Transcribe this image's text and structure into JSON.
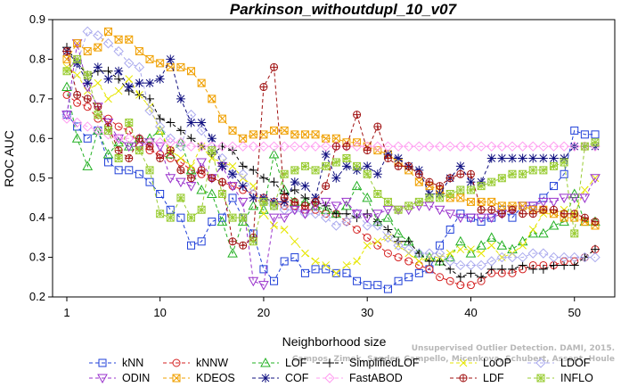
{
  "chart_data": {
    "type": "line",
    "title": "Parkinson_withoutdupl_10_v07",
    "xlabel": "Neighborhood size",
    "ylabel": "ROC AUC",
    "xlim": [
      1,
      52
    ],
    "ylim": [
      0.2,
      0.9
    ],
    "xticks": [
      1,
      10,
      20,
      30,
      40,
      50
    ],
    "yticks": [
      0.2,
      0.3,
      0.4,
      0.5,
      0.6,
      0.7,
      0.8,
      0.9
    ],
    "grid": false,
    "legend_position": "bottom",
    "credit_lines": [
      "Unsupervised Outlier Detection. DAMI, 2015.",
      "Campos, Zimek, Sander, Campello, Micenkova, Schubert, Assent, Houle"
    ],
    "x": [
      1,
      2,
      3,
      4,
      5,
      6,
      7,
      8,
      9,
      10,
      11,
      12,
      13,
      14,
      15,
      16,
      17,
      18,
      19,
      20,
      21,
      22,
      23,
      24,
      25,
      26,
      27,
      28,
      29,
      30,
      31,
      32,
      33,
      34,
      35,
      36,
      37,
      38,
      39,
      40,
      41,
      42,
      43,
      44,
      45,
      46,
      47,
      48,
      49,
      50,
      51,
      52
    ],
    "series": [
      {
        "name": "kNN",
        "color": "#1f3fd8",
        "marker": "square",
        "values": [
          0.66,
          0.63,
          0.6,
          0.62,
          0.54,
          0.52,
          0.52,
          0.51,
          0.49,
          0.46,
          0.42,
          0.4,
          0.33,
          0.34,
          0.39,
          0.4,
          0.45,
          0.4,
          0.36,
          0.27,
          0.24,
          0.29,
          0.3,
          0.26,
          0.27,
          0.27,
          0.26,
          0.26,
          0.24,
          0.23,
          0.23,
          0.22,
          0.24,
          0.25,
          0.26,
          0.27,
          0.33,
          0.37,
          0.41,
          0.4,
          0.39,
          0.4,
          0.42,
          0.4,
          0.43,
          0.43,
          0.45,
          0.48,
          0.51,
          0.62,
          0.61,
          0.61
        ]
      },
      {
        "name": "kNNW",
        "color": "#d42020",
        "marker": "circle",
        "values": [
          0.71,
          0.69,
          0.68,
          0.65,
          0.65,
          0.63,
          0.62,
          0.58,
          0.57,
          0.56,
          0.55,
          0.54,
          0.52,
          0.51,
          0.5,
          0.49,
          0.48,
          0.47,
          0.46,
          0.45,
          0.44,
          0.43,
          0.43,
          0.42,
          0.42,
          0.41,
          0.41,
          0.39,
          0.37,
          0.35,
          0.33,
          0.31,
          0.3,
          0.29,
          0.28,
          0.27,
          0.25,
          0.24,
          0.23,
          0.23,
          0.24,
          0.26,
          0.26,
          0.26,
          0.27,
          0.28,
          0.28,
          0.28,
          0.29,
          0.29,
          0.3,
          0.32
        ]
      },
      {
        "name": "LOF",
        "color": "#22b022",
        "marker": "triangle-up",
        "values": [
          0.73,
          0.6,
          0.53,
          0.62,
          0.56,
          0.59,
          0.58,
          0.6,
          0.6,
          0.62,
          0.56,
          0.59,
          0.52,
          0.47,
          0.46,
          0.39,
          0.31,
          0.39,
          0.43,
          0.42,
          0.56,
          0.47,
          0.44,
          0.44,
          0.43,
          0.42,
          0.41,
          0.43,
          0.48,
          0.45,
          0.39,
          0.4,
          0.36,
          0.34,
          0.31,
          0.3,
          0.29,
          0.3,
          0.34,
          0.31,
          0.33,
          0.35,
          0.33,
          0.32,
          0.34,
          0.36,
          0.36,
          0.38,
          0.39,
          0.46,
          0.39,
          0.39
        ]
      },
      {
        "name": "SimplifiedLOF",
        "color": "#000000",
        "marker": "plus",
        "values": [
          0.83,
          0.79,
          0.76,
          0.77,
          0.77,
          0.75,
          0.72,
          0.71,
          0.7,
          0.65,
          0.64,
          0.62,
          0.6,
          0.58,
          0.56,
          0.58,
          0.57,
          0.53,
          0.52,
          0.5,
          0.49,
          0.46,
          0.47,
          0.45,
          0.44,
          0.43,
          0.41,
          0.41,
          0.4,
          0.41,
          0.39,
          0.37,
          0.34,
          0.34,
          0.31,
          0.29,
          0.29,
          0.27,
          0.25,
          0.26,
          0.25,
          0.27,
          0.27,
          0.27,
          0.28,
          0.27,
          0.27,
          0.28,
          0.28,
          0.28,
          0.3,
          0.32
        ]
      },
      {
        "name": "LoOP",
        "color": "#e6e600",
        "marker": "cross",
        "values": [
          0.78,
          0.76,
          0.72,
          0.74,
          0.7,
          0.72,
          0.75,
          0.71,
          0.68,
          0.62,
          0.57,
          0.55,
          0.53,
          0.58,
          0.55,
          0.54,
          0.53,
          0.5,
          0.48,
          0.41,
          0.38,
          0.37,
          0.34,
          0.31,
          0.29,
          0.28,
          0.26,
          0.28,
          0.29,
          0.33,
          0.34,
          0.35,
          0.33,
          0.31,
          0.29,
          0.3,
          0.3,
          0.31,
          0.32,
          0.32,
          0.31,
          0.33,
          0.3,
          0.31,
          0.33,
          0.37,
          0.41,
          0.41,
          0.42,
          0.41,
          0.47,
          0.5
        ]
      },
      {
        "name": "LDOF",
        "color": "#aaaaee",
        "marker": "diamond",
        "values": [
          0.66,
          0.79,
          0.87,
          0.86,
          0.84,
          0.82,
          0.79,
          0.78,
          0.67,
          0.63,
          0.6,
          0.58,
          0.66,
          0.62,
          0.58,
          0.55,
          0.51,
          0.51,
          0.46,
          0.44,
          0.43,
          0.42,
          0.42,
          0.41,
          0.41,
          0.4,
          0.38,
          0.39,
          0.41,
          0.38,
          0.38,
          0.35,
          0.33,
          0.32,
          0.31,
          0.31,
          0.31,
          0.29,
          0.28,
          0.28,
          0.28,
          0.29,
          0.3,
          0.3,
          0.3,
          0.31,
          0.31,
          0.3,
          0.3,
          0.3,
          0.3,
          0.3
        ]
      },
      {
        "name": "ODIN",
        "color": "#9932cc",
        "marker": "triangle-down",
        "values": [
          0.66,
          0.84,
          0.73,
          0.68,
          0.64,
          0.6,
          0.58,
          0.58,
          0.59,
          0.58,
          0.5,
          0.49,
          0.48,
          0.54,
          0.5,
          0.53,
          0.48,
          0.44,
          0.24,
          0.23,
          0.4,
          0.4,
          0.42,
          0.41,
          0.43,
          0.44,
          0.43,
          0.44,
          0.41,
          0.4,
          0.41,
          0.42,
          0.42,
          0.42,
          0.43,
          0.43,
          0.42,
          0.41,
          0.4,
          0.4,
          0.4,
          0.4,
          0.41,
          0.42,
          0.43,
          0.43,
          0.44,
          0.44,
          0.45,
          0.45,
          0.45,
          0.5
        ]
      },
      {
        "name": "KDEOS",
        "color": "#f0a000",
        "marker": "square-cross",
        "values": [
          0.8,
          0.84,
          0.82,
          0.83,
          0.87,
          0.85,
          0.85,
          0.82,
          0.8,
          0.79,
          0.78,
          0.78,
          0.77,
          0.74,
          0.7,
          0.65,
          0.62,
          0.6,
          0.61,
          0.61,
          0.62,
          0.62,
          0.61,
          0.61,
          0.61,
          0.6,
          0.6,
          0.59,
          0.59,
          0.58,
          0.57,
          0.56,
          0.54,
          0.52,
          0.49,
          0.48,
          0.47,
          0.45,
          0.45,
          0.44,
          0.44,
          0.44,
          0.43,
          0.43,
          0.43,
          0.42,
          0.42,
          0.41,
          0.4,
          0.4,
          0.39,
          0.38
        ]
      },
      {
        "name": "COF",
        "color": "#101080",
        "marker": "star",
        "values": [
          0.82,
          0.79,
          0.74,
          0.78,
          0.75,
          0.77,
          0.73,
          0.74,
          0.74,
          0.75,
          0.8,
          0.7,
          0.64,
          0.64,
          0.6,
          0.53,
          0.51,
          0.48,
          0.45,
          0.45,
          0.44,
          0.44,
          0.49,
          0.48,
          0.45,
          0.56,
          0.5,
          0.53,
          0.52,
          0.53,
          0.51,
          0.56,
          0.55,
          0.53,
          0.52,
          0.46,
          0.46,
          0.5,
          0.53,
          0.49,
          0.49,
          0.55,
          0.55,
          0.55,
          0.55,
          0.55,
          0.55,
          0.55,
          0.55,
          0.58,
          0.58,
          0.58
        ]
      },
      {
        "name": "FastABOD",
        "color": "#ff9cf0",
        "marker": "diamond",
        "values": [
          0.65,
          0.64,
          0.63,
          0.62,
          0.61,
          0.6,
          0.6,
          0.6,
          0.59,
          0.59,
          0.59,
          0.59,
          0.58,
          0.58,
          0.58,
          0.58,
          0.58,
          0.58,
          0.58,
          0.58,
          0.58,
          0.58,
          0.58,
          0.58,
          0.58,
          0.58,
          0.58,
          0.58,
          0.58,
          0.58,
          0.58,
          0.58,
          0.58,
          0.58,
          0.58,
          0.58,
          0.58,
          0.58,
          0.58,
          0.58,
          0.58,
          0.58,
          0.58,
          0.58,
          0.58,
          0.58,
          0.58,
          0.58,
          0.58,
          0.58,
          0.58,
          0.58
        ]
      },
      {
        "name": "LDF",
        "color": "#a01010",
        "marker": "circle-plus",
        "values": [
          0.82,
          0.71,
          0.7,
          0.68,
          0.63,
          0.57,
          0.55,
          0.6,
          0.58,
          0.55,
          0.57,
          0.52,
          0.5,
          0.52,
          0.5,
          0.49,
          0.34,
          0.33,
          0.35,
          0.73,
          0.78,
          0.45,
          0.44,
          0.43,
          0.44,
          0.48,
          0.58,
          0.58,
          0.66,
          0.57,
          0.63,
          0.55,
          0.53,
          0.53,
          0.51,
          0.49,
          0.48,
          0.5,
          0.51,
          0.51,
          0.42,
          0.42,
          0.41,
          0.42,
          0.41,
          0.41,
          0.42,
          0.42,
          0.41,
          0.41,
          0.4,
          0.39
        ]
      },
      {
        "name": "INFLO",
        "color": "#99cc33",
        "marker": "star-square",
        "values": [
          0.77,
          0.8,
          0.76,
          0.66,
          0.62,
          0.55,
          0.64,
          0.57,
          0.52,
          0.41,
          0.4,
          0.45,
          0.4,
          0.42,
          0.57,
          0.46,
          0.4,
          0.4,
          0.34,
          0.44,
          0.43,
          0.51,
          0.52,
          0.53,
          0.52,
          0.53,
          0.54,
          0.55,
          0.53,
          0.51,
          0.46,
          0.44,
          0.42,
          0.43,
          0.44,
          0.45,
          0.45,
          0.46,
          0.47,
          0.47,
          0.48,
          0.49,
          0.5,
          0.51,
          0.51,
          0.52,
          0.52,
          0.53,
          0.54,
          0.36,
          0.58,
          0.59
        ]
      }
    ]
  }
}
